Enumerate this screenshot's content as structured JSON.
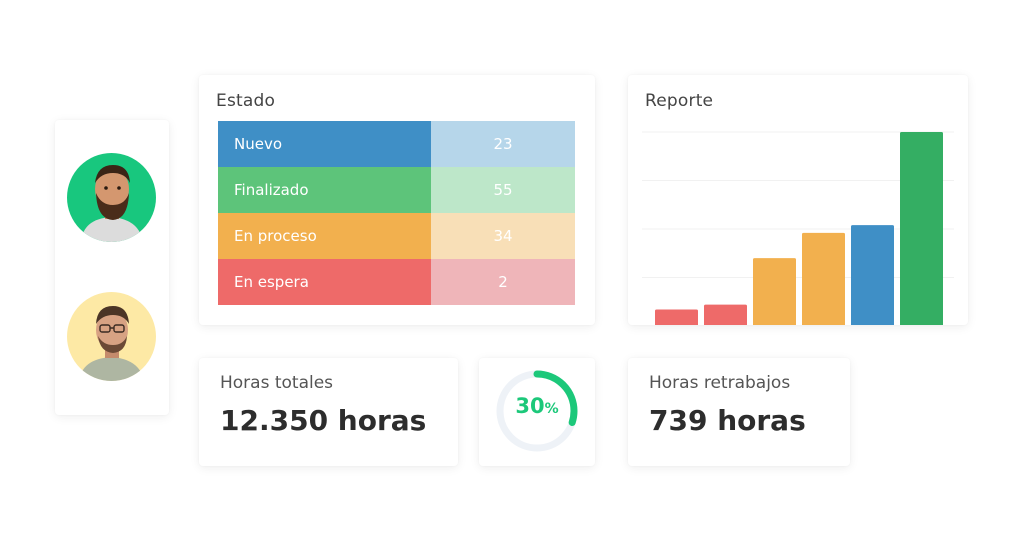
{
  "avatars": [
    {
      "name": "avatar-bearded-man",
      "bg": "#18c77e"
    },
    {
      "name": "avatar-man-glasses",
      "bg": "#fde9a5"
    }
  ],
  "estado": {
    "title": "Estado",
    "rows": [
      {
        "label": "Nuevo",
        "value": "23",
        "color": "#3f8fc6",
        "light": "#b6d6ea"
      },
      {
        "label": "Finalizado",
        "value": "55",
        "color": "#5dc47a",
        "light": "#bde7c9"
      },
      {
        "label": "En proceso",
        "value": "34",
        "color": "#f2b04e",
        "light": "#f8dfb7"
      },
      {
        "label": "En espera",
        "value": "2",
        "color": "#ee6a69",
        "light": "#efb5b9"
      }
    ]
  },
  "reporte": {
    "title": "Reporte"
  },
  "chart_data": {
    "type": "bar",
    "title": "Reporte",
    "categories": [
      "",
      "",
      "",
      "",
      "",
      ""
    ],
    "values": [
      17,
      22,
      70,
      96,
      104,
      200
    ],
    "colors": [
      "#ee6a69",
      "#ee6a69",
      "#f2b04e",
      "#f2b04e",
      "#3f8fc6",
      "#34ae63"
    ],
    "ylim": [
      0,
      200
    ],
    "grid": true,
    "legend": "none"
  },
  "horas_totales": {
    "label": "Horas totales",
    "value": "12.350 horas"
  },
  "progress": {
    "number": "30",
    "unit": "%",
    "fraction": 0.3,
    "color": "#1cc87a",
    "track": "#eef2f7"
  },
  "horas_retrabajos": {
    "label": "Horas retrabajos",
    "value": "739 horas"
  }
}
